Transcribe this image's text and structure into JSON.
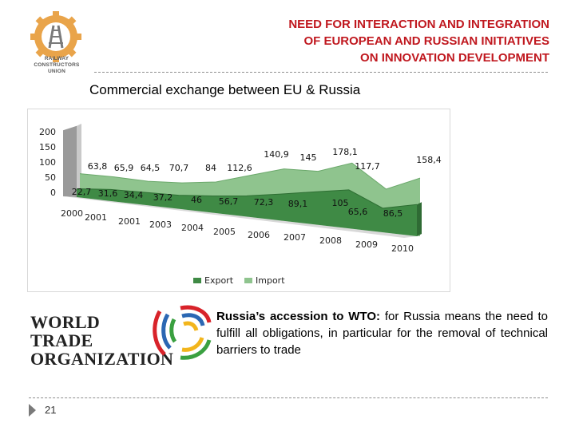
{
  "header": {
    "title_lines": [
      "NEED FOR INTERACTION AND INTEGRATION",
      "OF EUROPEAN AND RUSSIAN INITIATIVES",
      "ON INNOVATION DEVELOPMENT"
    ],
    "logo_text_lines": [
      "RAILWAY",
      "CONSTRUCTORS",
      "UNION"
    ],
    "title_color": "#c0181f"
  },
  "subtitle": "Commercial exchange between EU & Russia",
  "chart_data": {
    "type": "area",
    "categories": [
      "2000",
      "2001",
      "2001",
      "2003",
      "2004",
      "2005",
      "2006",
      "2007",
      "2008",
      "2009",
      "2010"
    ],
    "series": [
      {
        "name": "Export",
        "color": "#3f8a45",
        "values": [
          22.7,
          31.6,
          34.4,
          37.2,
          46,
          56.7,
          72.3,
          89.1,
          105,
          65.6,
          86.5
        ],
        "labels": [
          "22,7",
          "31,6",
          "34,4",
          "37,2",
          "46",
          "56,7",
          "72,3",
          "89,1",
          "105",
          "65,6",
          "86,5"
        ]
      },
      {
        "name": "Import",
        "color": "#8fc48e",
        "values": [
          63.8,
          65.9,
          64.5,
          70.7,
          84,
          112.6,
          140.9,
          145,
          178.1,
          117.7,
          158.4
        ],
        "labels": [
          "63,8",
          "65,9",
          "64,5",
          "70,7",
          "84",
          "112,6",
          "140,9",
          "145",
          "178,1",
          "117,7",
          "158,4"
        ]
      }
    ],
    "y_ticks": [
      "200",
      "150",
      "100",
      "50",
      "0"
    ],
    "ylim": [
      0,
      200
    ],
    "legend": [
      "Export",
      "Import"
    ],
    "legend_position": "bottom",
    "grid": false
  },
  "wto": {
    "name_lines": [
      "WORLD TRADE",
      "ORGANIZATION"
    ],
    "lead": "Russia’s accession to WTO:",
    "body": " for Russia means the need to fulfill all obligations, in particular for the removal of technical barriers to trade"
  },
  "footer": {
    "page_number": "21"
  }
}
